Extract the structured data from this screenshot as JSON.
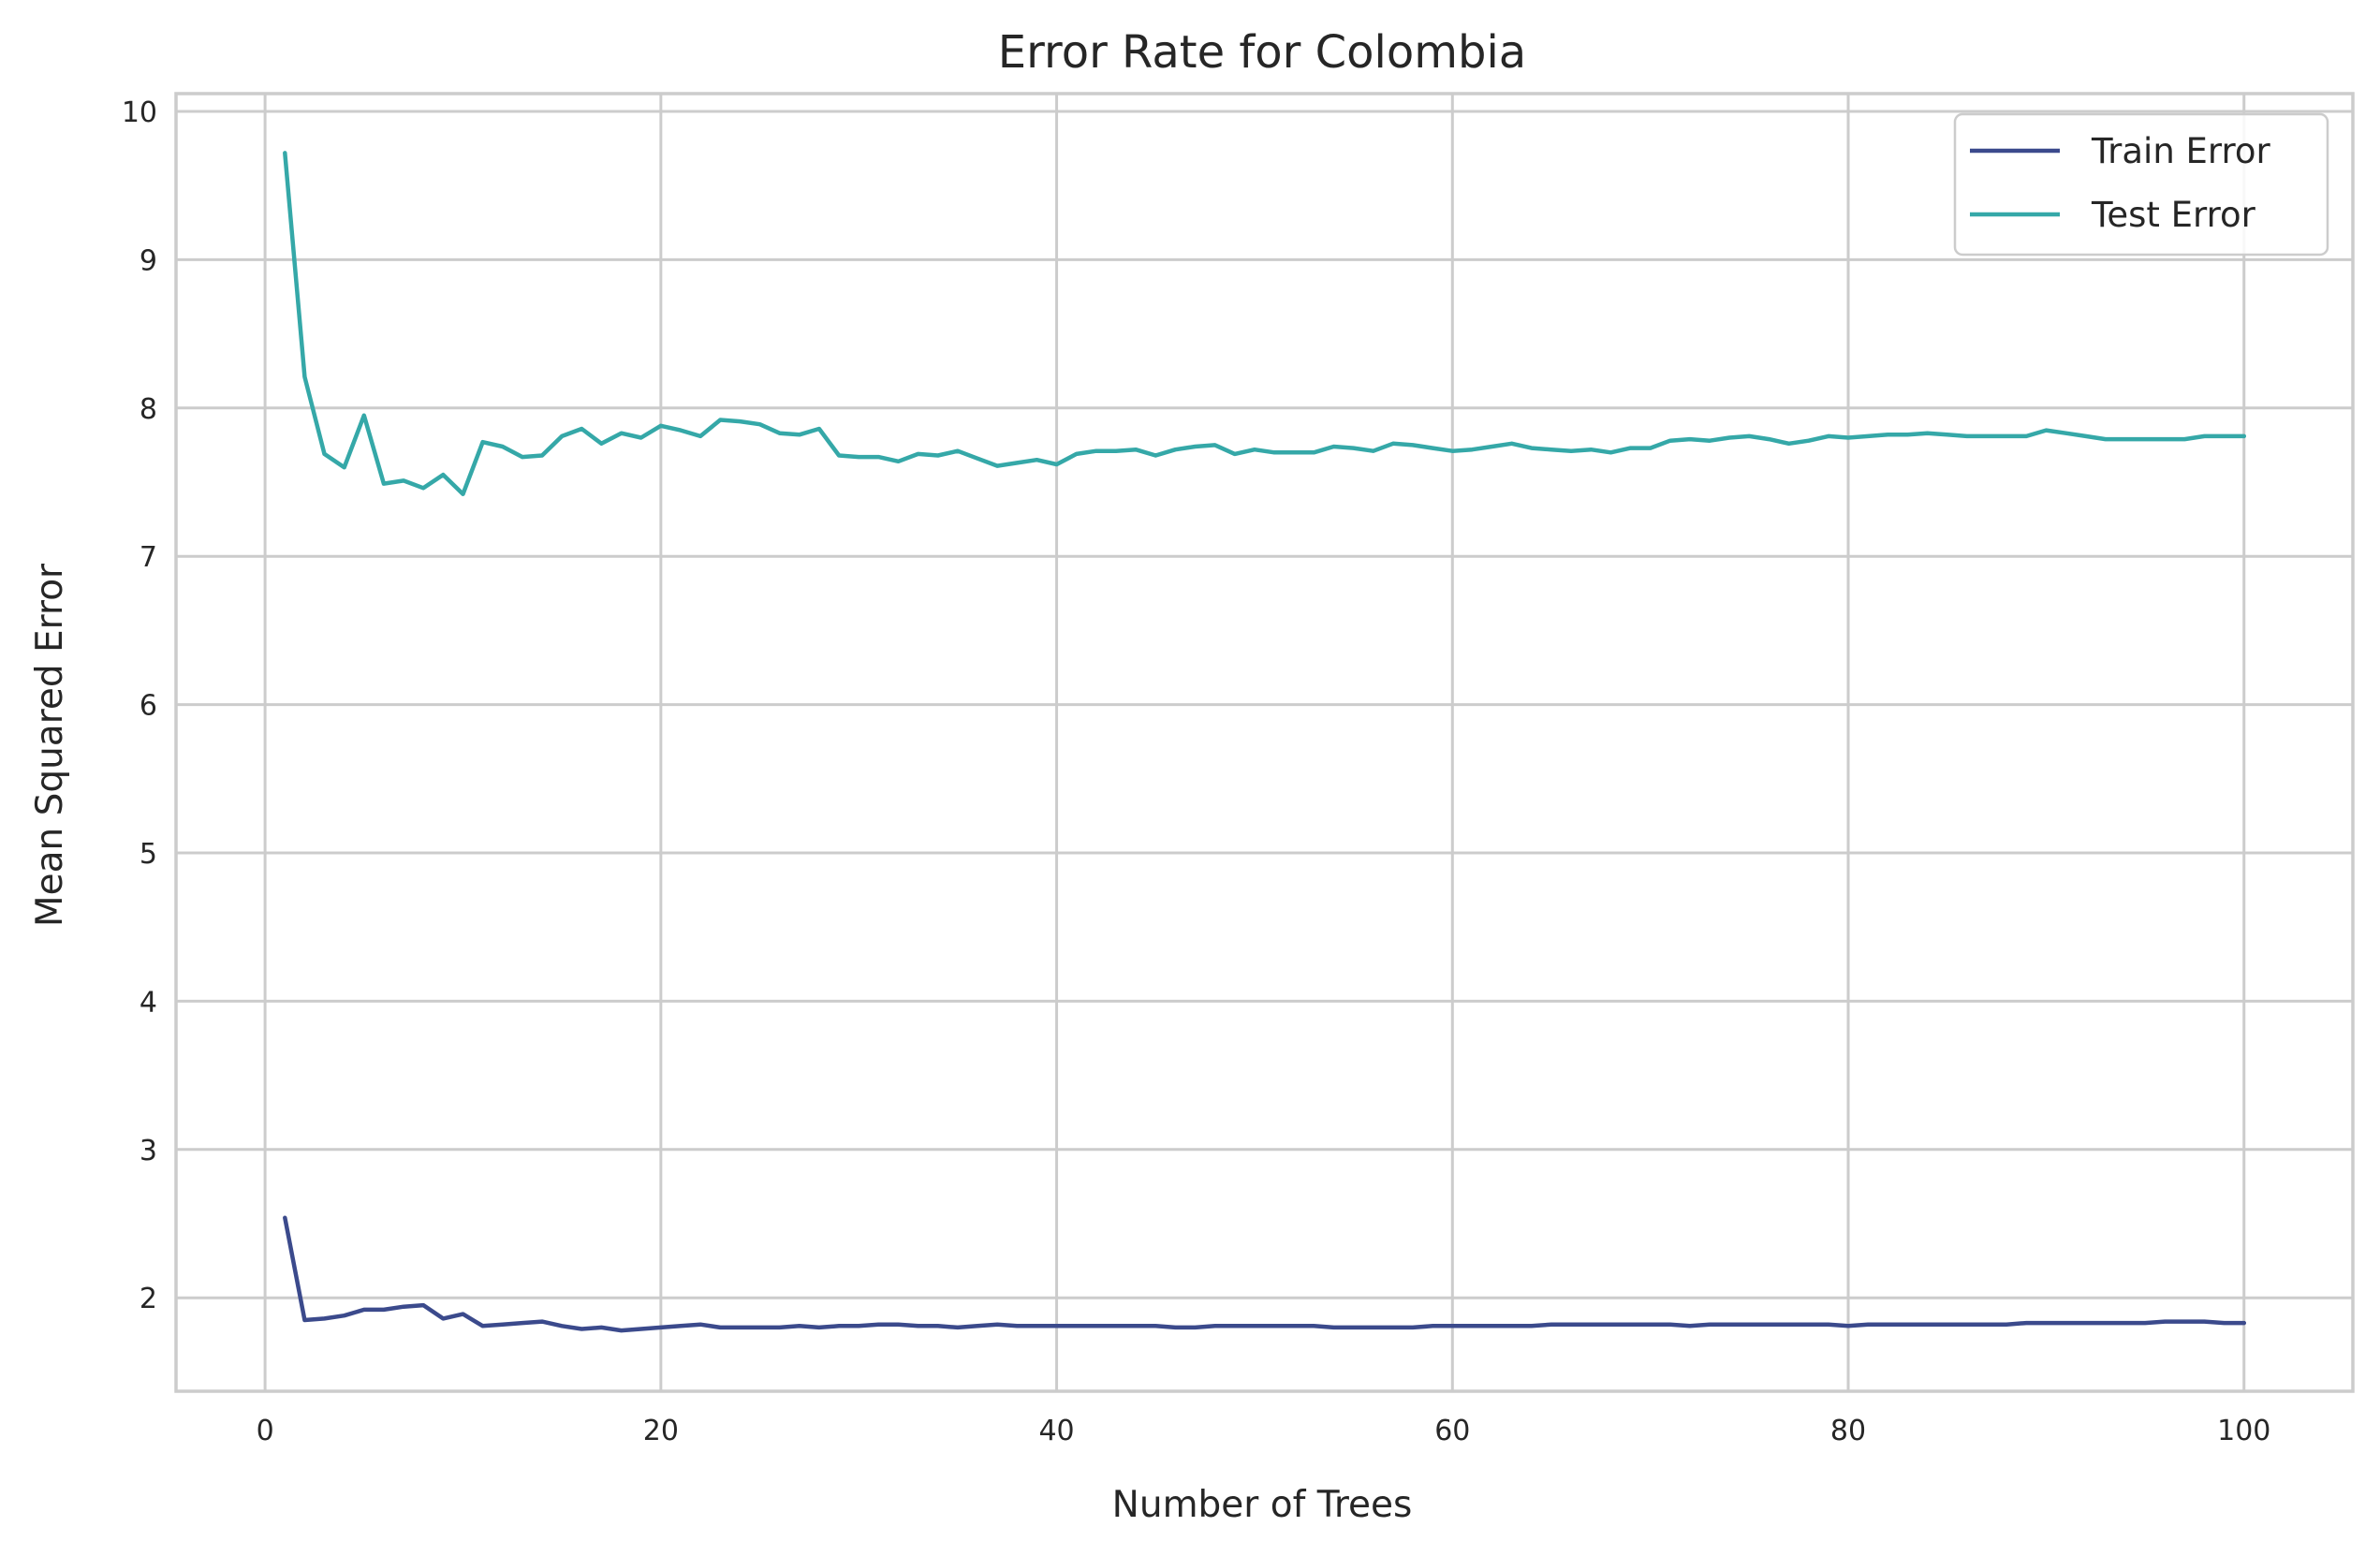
{
  "chart_data": {
    "type": "line",
    "title": "Error Rate for Colombia",
    "xlabel": "Number of Trees",
    "ylabel": "Mean Squared Error",
    "xlim": [
      -4.5,
      105.5
    ],
    "ylim": [
      1.37,
      10.12
    ],
    "xticks": [
      0,
      20,
      40,
      60,
      80,
      100
    ],
    "yticks": [
      2,
      3,
      4,
      5,
      6,
      7,
      8,
      9,
      10
    ],
    "grid": true,
    "legend_position": "top-right",
    "x": [
      1,
      2,
      3,
      4,
      5,
      6,
      7,
      8,
      9,
      10,
      11,
      12,
      13,
      14,
      15,
      16,
      17,
      18,
      19,
      20,
      21,
      22,
      23,
      24,
      25,
      26,
      27,
      28,
      29,
      30,
      31,
      32,
      33,
      34,
      35,
      36,
      37,
      38,
      39,
      40,
      41,
      42,
      43,
      44,
      45,
      46,
      47,
      48,
      49,
      50,
      51,
      52,
      53,
      54,
      55,
      56,
      57,
      58,
      59,
      60,
      61,
      62,
      63,
      64,
      65,
      66,
      67,
      68,
      69,
      70,
      71,
      72,
      73,
      74,
      75,
      76,
      77,
      78,
      79,
      80,
      81,
      82,
      83,
      84,
      85,
      86,
      87,
      88,
      89,
      90,
      91,
      92,
      93,
      94,
      95,
      96,
      97,
      98,
      99,
      100
    ],
    "series": [
      {
        "name": "Train Error",
        "color": "#3b4a8c",
        "values": [
          2.54,
          1.85,
          1.86,
          1.88,
          1.92,
          1.92,
          1.94,
          1.95,
          1.86,
          1.89,
          1.81,
          1.82,
          1.83,
          1.84,
          1.81,
          1.79,
          1.8,
          1.78,
          1.79,
          1.8,
          1.81,
          1.82,
          1.8,
          1.8,
          1.8,
          1.8,
          1.81,
          1.8,
          1.81,
          1.81,
          1.82,
          1.82,
          1.81,
          1.81,
          1.8,
          1.81,
          1.82,
          1.81,
          1.81,
          1.81,
          1.81,
          1.81,
          1.81,
          1.81,
          1.81,
          1.8,
          1.8,
          1.81,
          1.81,
          1.81,
          1.81,
          1.81,
          1.81,
          1.8,
          1.8,
          1.8,
          1.8,
          1.8,
          1.81,
          1.81,
          1.81,
          1.81,
          1.81,
          1.81,
          1.82,
          1.82,
          1.82,
          1.82,
          1.82,
          1.82,
          1.82,
          1.81,
          1.82,
          1.82,
          1.82,
          1.82,
          1.82,
          1.82,
          1.82,
          1.81,
          1.82,
          1.82,
          1.82,
          1.82,
          1.82,
          1.82,
          1.82,
          1.82,
          1.83,
          1.83,
          1.83,
          1.83,
          1.83,
          1.83,
          1.83,
          1.84,
          1.84,
          1.84,
          1.83,
          1.83
        ]
      },
      {
        "name": "Test Error",
        "color": "#35a8a8",
        "values": [
          9.72,
          8.21,
          7.69,
          7.6,
          7.95,
          7.49,
          7.51,
          7.46,
          7.55,
          7.42,
          7.77,
          7.74,
          7.67,
          7.68,
          7.81,
          7.86,
          7.76,
          7.83,
          7.8,
          7.88,
          7.85,
          7.81,
          7.92,
          7.91,
          7.89,
          7.83,
          7.82,
          7.86,
          7.68,
          7.67,
          7.67,
          7.64,
          7.69,
          7.68,
          7.71,
          7.66,
          7.61,
          7.63,
          7.65,
          7.62,
          7.69,
          7.71,
          7.71,
          7.72,
          7.68,
          7.72,
          7.74,
          7.75,
          7.69,
          7.72,
          7.7,
          7.7,
          7.7,
          7.74,
          7.73,
          7.71,
          7.76,
          7.75,
          7.73,
          7.71,
          7.72,
          7.74,
          7.76,
          7.73,
          7.72,
          7.71,
          7.72,
          7.7,
          7.73,
          7.73,
          7.78,
          7.79,
          7.78,
          7.8,
          7.81,
          7.79,
          7.76,
          7.78,
          7.81,
          7.8,
          7.81,
          7.82,
          7.82,
          7.83,
          7.82,
          7.81,
          7.81,
          7.81,
          7.81,
          7.85,
          7.83,
          7.81,
          7.79,
          7.79,
          7.79,
          7.79,
          7.79,
          7.81,
          7.81,
          7.81
        ]
      }
    ]
  }
}
